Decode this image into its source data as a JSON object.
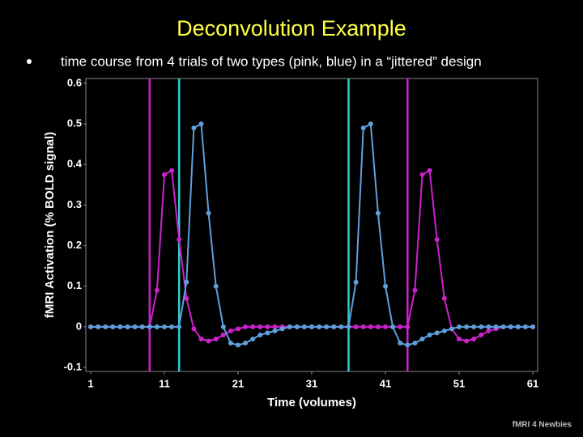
{
  "chart_data": {
    "type": "line",
    "title": "Deconvolution Example",
    "subtitle": "time course from 4 trials of two types (pink, blue) in a “jittered” design",
    "x_label": "Time (volumes)",
    "y_label": "fMRI Activation (% BOLD signal)",
    "footer": "fMRI 4 Newbies",
    "x": [
      1,
      2,
      3,
      4,
      5,
      6,
      7,
      8,
      9,
      10,
      11,
      12,
      13,
      14,
      15,
      16,
      17,
      18,
      19,
      20,
      21,
      22,
      23,
      24,
      25,
      26,
      27,
      28,
      29,
      30,
      31,
      32,
      33,
      34,
      35,
      36,
      37,
      38,
      39,
      40,
      41,
      42,
      43,
      44,
      45,
      46,
      47,
      48,
      49,
      50,
      51,
      52,
      53,
      54,
      55,
      56,
      57,
      58,
      59,
      60,
      61
    ],
    "series": [
      {
        "name": "pink",
        "color": "#cc22cc",
        "values": [
          0,
          0,
          0,
          0,
          0,
          0,
          0,
          0,
          0,
          0.09,
          0.375,
          0.385,
          0.215,
          0.07,
          -0.005,
          -0.03,
          -0.035,
          -0.03,
          -0.02,
          -0.01,
          -0.005,
          0,
          0,
          0,
          0,
          0,
          0,
          0,
          0,
          0,
          0,
          0,
          0,
          0,
          0,
          0,
          0,
          0,
          0,
          0,
          0,
          0,
          0,
          0,
          0.09,
          0.375,
          0.385,
          0.215,
          0.07,
          -0.005,
          -0.03,
          -0.035,
          -0.03,
          -0.02,
          -0.01,
          -0.005,
          0,
          0,
          0,
          0,
          0
        ]
      },
      {
        "name": "blue",
        "color": "#5fa0dc",
        "values": [
          0,
          0,
          0,
          0,
          0,
          0,
          0,
          0,
          0,
          0,
          0,
          0,
          0,
          0.11,
          0.49,
          0.5,
          0.28,
          0.1,
          0,
          -0.04,
          -0.045,
          -0.04,
          -0.03,
          -0.02,
          -0.015,
          -0.01,
          -0.005,
          0,
          0,
          0,
          0,
          0,
          0,
          0,
          0,
          0,
          0.11,
          0.49,
          0.5,
          0.28,
          0.1,
          0,
          -0.04,
          -0.045,
          -0.04,
          -0.03,
          -0.02,
          -0.015,
          -0.01,
          -0.005,
          0,
          0,
          0,
          0,
          0,
          0,
          0,
          0,
          0,
          0,
          0
        ]
      }
    ],
    "event_lines": [
      {
        "x": 9,
        "color": "#cc22cc"
      },
      {
        "x": 13,
        "color": "#33cccc"
      },
      {
        "x": 36,
        "color": "#33cccc"
      },
      {
        "x": 44,
        "color": "#cc22cc"
      }
    ],
    "xlim": [
      1,
      61
    ],
    "xticks": [
      1,
      11,
      21,
      31,
      41,
      51,
      61
    ],
    "ylim": [
      -0.1,
      0.6
    ],
    "yticks": [
      -0.1,
      0,
      0.1,
      0.2,
      0.3,
      0.4,
      0.5,
      0.6
    ],
    "grid": false
  }
}
